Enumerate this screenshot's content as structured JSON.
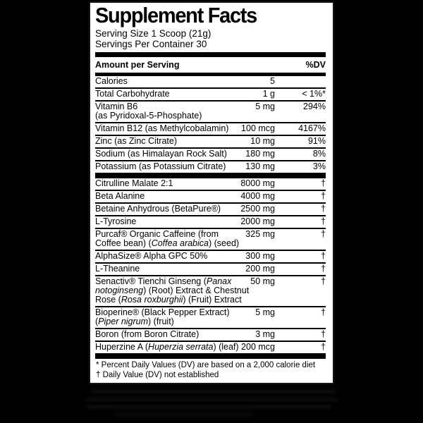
{
  "page": {
    "background_color": "#000000",
    "label_background": "#ffffff",
    "text_color": "#000000"
  },
  "label": {
    "title": "Supplement Facts",
    "serving_size": "Serving Size 1 Scoop (21g)",
    "servings_per_container": "Servings Per Container 30",
    "columns": {
      "amount": "Amount per Serving",
      "dv": "%DV"
    },
    "groups": [
      {
        "rows": [
          {
            "name": "Calories",
            "amount": "5",
            "dv": ""
          },
          {
            "name": "Total Carbohydrate",
            "amount": "1 g",
            "dv": "< 1%*"
          },
          {
            "name": "Vitamin B6\n(as Pyridoxal-5-Phosphate)",
            "amount": "5 mg",
            "dv": "294%"
          },
          {
            "name": "Vitamin B12 (as Methylcobalamin)",
            "amount": "100 mcg",
            "dv": "4167%"
          },
          {
            "name": "Zinc (as Zinc Citrate)",
            "amount": "10 mg",
            "dv": "91%"
          },
          {
            "name": "Sodium (as Himalayan Rock Salt)",
            "amount": "180 mg",
            "dv": "8%"
          },
          {
            "name": "Potassium (as Potassium Citrate)",
            "amount": "130 mg",
            "dv": "3%"
          }
        ]
      },
      {
        "rows": [
          {
            "name": "Citrulline Malate 2:1",
            "amount": "8000 mg",
            "dv": "†"
          },
          {
            "name": "Beta Alanine",
            "amount": "4000 mg",
            "dv": "†"
          },
          {
            "name": "Betaine Anhydrous (BetaPure®)",
            "amount": "2500 mg",
            "dv": "†"
          },
          {
            "name": "L-Tyrosine",
            "amount": "2000 mg",
            "dv": "†"
          },
          {
            "name": "Purcaf® Organic Caffeine (from\nCoffee bean) (*Coffea arabica*) (seed)",
            "amount": "325 mg",
            "dv": "†"
          },
          {
            "name": "AlphaSize® Alpha GPC 50%",
            "amount": "300 mg",
            "dv": "†"
          },
          {
            "name": "L-Theanine",
            "amount": "200 mg",
            "dv": "†"
          },
          {
            "name": "Senactiv® Tienchi Ginseng (*Panax\nnotoginseng*) (Root) Extract & Chestnut\nRose (*Rosa roxburghii*) (Fruit) Extract",
            "amount": "50 mg",
            "dv": "†"
          },
          {
            "name": "Bioperine® (Black Pepper Extract)\n(*Piper nigrum*) (fruit)",
            "amount": "5 mg",
            "dv": "†"
          },
          {
            "name": "Boron (from Boron Citrate)",
            "amount": "3 mg",
            "dv": "†"
          },
          {
            "name": "Huperzine A (*Huperzia serrata*) (leaf)",
            "amount": "200 mcg",
            "dv": "†"
          }
        ]
      }
    ],
    "footnotes": [
      "* Percent Daily Values (DV) are based on a 2,000 calorie diet",
      "† Daily Value (DV) not established"
    ]
  }
}
